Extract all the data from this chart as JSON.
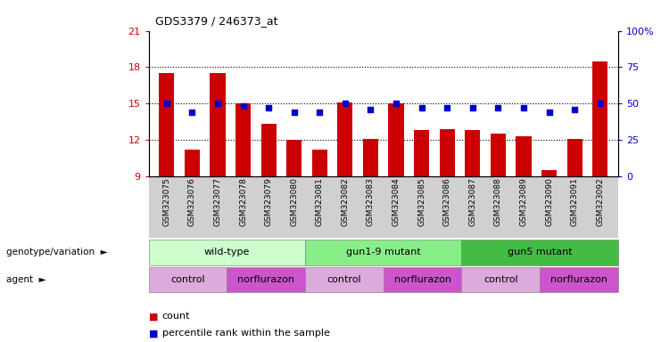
{
  "title": "GDS3379 / 246373_at",
  "samples": [
    "GSM323075",
    "GSM323076",
    "GSM323077",
    "GSM323078",
    "GSM323079",
    "GSM323080",
    "GSM323081",
    "GSM323082",
    "GSM323083",
    "GSM323084",
    "GSM323085",
    "GSM323086",
    "GSM323087",
    "GSM323088",
    "GSM323089",
    "GSM323090",
    "GSM323091",
    "GSM323092"
  ],
  "counts": [
    17.5,
    11.2,
    17.5,
    15.0,
    13.3,
    12.0,
    11.2,
    15.1,
    12.1,
    15.0,
    12.8,
    12.9,
    12.8,
    12.5,
    12.3,
    9.5,
    12.1,
    18.5
  ],
  "percentile_ranks": [
    50,
    44,
    50,
    48,
    47,
    44,
    44,
    50,
    46,
    50,
    47,
    47,
    47,
    47,
    47,
    44,
    46,
    50
  ],
  "ylim_left": [
    9,
    21
  ],
  "ylim_right": [
    0,
    100
  ],
  "yticks_left": [
    9,
    12,
    15,
    18,
    21
  ],
  "yticks_right": [
    0,
    25,
    50,
    75,
    100
  ],
  "ytick_labels_left": [
    "9",
    "12",
    "15",
    "18",
    "21"
  ],
  "ytick_labels_right": [
    "0",
    "25",
    "50",
    "75",
    "100%"
  ],
  "bar_color": "#cc0000",
  "dot_color": "#0000cc",
  "genotype_groups": [
    {
      "label": "wild-type",
      "start": 0,
      "end": 6,
      "color": "#ccffcc"
    },
    {
      "label": "gun1-9 mutant",
      "start": 6,
      "end": 12,
      "color": "#88ee88"
    },
    {
      "label": "gun5 mutant",
      "start": 12,
      "end": 18,
      "color": "#44bb44"
    }
  ],
  "agent_groups": [
    {
      "label": "control",
      "start": 0,
      "end": 3,
      "color": "#ddaadd"
    },
    {
      "label": "norflurazon",
      "start": 3,
      "end": 6,
      "color": "#cc55cc"
    },
    {
      "label": "control",
      "start": 6,
      "end": 9,
      "color": "#ddaadd"
    },
    {
      "label": "norflurazon",
      "start": 9,
      "end": 12,
      "color": "#cc55cc"
    },
    {
      "label": "control",
      "start": 12,
      "end": 15,
      "color": "#ddaadd"
    },
    {
      "label": "norflurazon",
      "start": 15,
      "end": 18,
      "color": "#cc55cc"
    }
  ],
  "dotted_lines": [
    12,
    15,
    18
  ],
  "bar_bottom": 9
}
